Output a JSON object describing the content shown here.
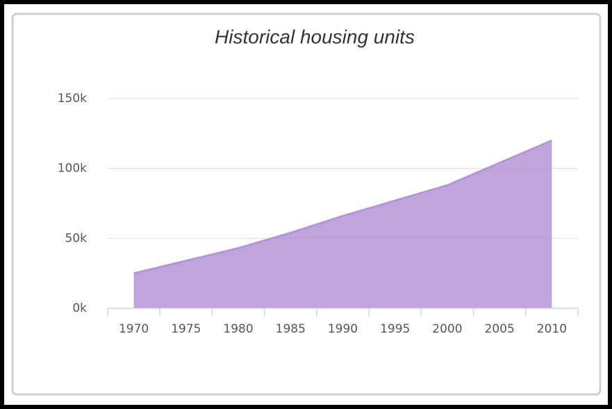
{
  "chart_data": {
    "type": "area",
    "title": "Historical housing units",
    "categories": [
      "1970",
      "1975",
      "1980",
      "1985",
      "1990",
      "1995",
      "2000",
      "2005",
      "2010"
    ],
    "series": [
      {
        "name": "Housing units",
        "color": "#b495d6",
        "values": [
          25000,
          34000,
          43000,
          54000,
          66000,
          77000,
          88000,
          104000,
          120000
        ]
      }
    ],
    "ylim": [
      0,
      150000
    ],
    "yticks": [
      {
        "value": 0,
        "label": "0k"
      },
      {
        "value": 50000,
        "label": "50k"
      },
      {
        "value": 100000,
        "label": "100k"
      },
      {
        "value": 150000,
        "label": "150k"
      }
    ],
    "grid": true
  }
}
